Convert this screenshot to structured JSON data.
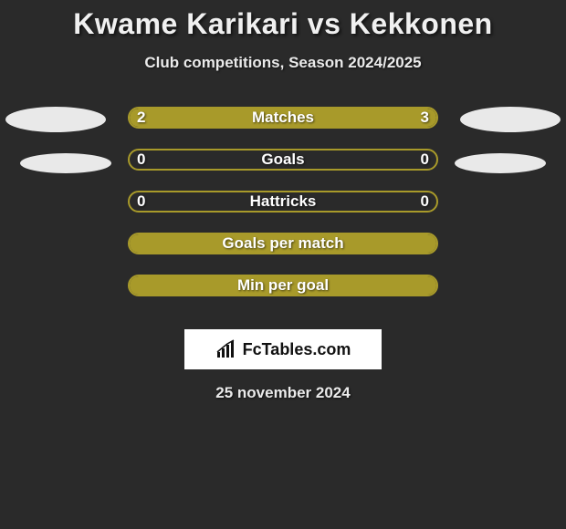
{
  "title": "Kwame Karikari vs Kekkonen",
  "subtitle": "Club competitions, Season 2024/2025",
  "date": "25 november 2024",
  "logo_text": "FcTables.com",
  "accent_color": "#a89a2a",
  "background_color": "#2a2a2a",
  "text_color": "#ffffff",
  "oval_color": "#e9e9e9",
  "rows": [
    {
      "label": "Matches",
      "left": "2",
      "right": "3",
      "fill_left_pct": 40,
      "fill_right_pct": 60,
      "show_vals": true,
      "ovals": "big"
    },
    {
      "label": "Goals",
      "left": "0",
      "right": "0",
      "fill_left_pct": 0,
      "fill_right_pct": 0,
      "show_vals": true,
      "ovals": "small"
    },
    {
      "label": "Hattricks",
      "left": "0",
      "right": "0",
      "fill_left_pct": 0,
      "fill_right_pct": 0,
      "show_vals": true,
      "ovals": "none"
    },
    {
      "label": "Goals per match",
      "left": "",
      "right": "",
      "fill_left_pct": 100,
      "fill_right_pct": 0,
      "show_vals": false,
      "ovals": "none"
    },
    {
      "label": "Min per goal",
      "left": "",
      "right": "",
      "fill_left_pct": 100,
      "fill_right_pct": 0,
      "show_vals": false,
      "ovals": "none"
    }
  ]
}
